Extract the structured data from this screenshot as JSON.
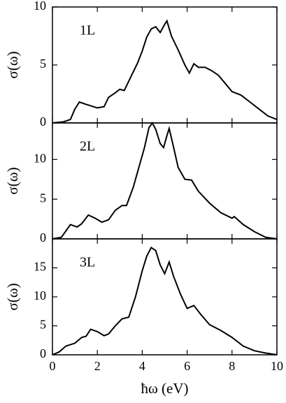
{
  "chart_data": [
    {
      "type": "line",
      "label": "1L",
      "ylabel": "σ(ω)",
      "color": "#000000",
      "xlim": [
        0,
        10
      ],
      "xticks": [
        0,
        2,
        4,
        6,
        8,
        10
      ],
      "ylim": [
        0,
        10
      ],
      "yticks": [
        0,
        5,
        10
      ],
      "x": [
        0,
        0.5,
        0.8,
        1.0,
        1.2,
        1.5,
        2.0,
        2.3,
        2.5,
        2.8,
        3.0,
        3.2,
        3.5,
        3.8,
        4.0,
        4.2,
        4.4,
        4.6,
        4.8,
        5.0,
        5.1,
        5.3,
        5.6,
        5.9,
        6.1,
        6.3,
        6.5,
        6.8,
        7.1,
        7.4,
        7.7,
        8.0,
        8.4,
        8.8,
        9.2,
        9.6,
        10
      ],
      "values": [
        0.0,
        0.1,
        0.3,
        1.2,
        1.8,
        1.6,
        1.3,
        1.4,
        2.2,
        2.6,
        2.9,
        2.8,
        4.0,
        5.2,
        6.2,
        7.4,
        8.1,
        8.3,
        7.8,
        8.5,
        8.8,
        7.5,
        6.3,
        5.0,
        4.3,
        5.1,
        4.8,
        4.8,
        4.5,
        4.1,
        3.4,
        2.7,
        2.4,
        1.8,
        1.2,
        0.6,
        0.3
      ]
    },
    {
      "type": "line",
      "label": "2L",
      "ylabel": "σ(ω)",
      "color": "#000000",
      "xlim": [
        0,
        10
      ],
      "xticks": [
        0,
        2,
        4,
        6,
        8,
        10
      ],
      "ylim": [
        0,
        14.6
      ],
      "yticks": [
        0,
        5,
        10
      ],
      "x": [
        0,
        0.4,
        0.6,
        0.8,
        1.1,
        1.3,
        1.6,
        1.9,
        2.2,
        2.5,
        2.8,
        3.1,
        3.3,
        3.6,
        3.9,
        4.1,
        4.3,
        4.45,
        4.6,
        4.8,
        4.95,
        5.1,
        5.2,
        5.4,
        5.6,
        5.9,
        6.2,
        6.5,
        7.0,
        7.5,
        8.0,
        8.1,
        8.5,
        9.0,
        9.5,
        10
      ],
      "values": [
        0,
        0.2,
        1.0,
        1.8,
        1.5,
        1.9,
        3.0,
        2.6,
        2.1,
        2.4,
        3.6,
        4.2,
        4.2,
        6.5,
        9.5,
        11.5,
        14.0,
        14.6,
        13.8,
        12.0,
        11.5,
        13.0,
        13.9,
        11.5,
        9.0,
        7.5,
        7.4,
        6.0,
        4.5,
        3.3,
        2.6,
        2.8,
        1.8,
        0.9,
        0.2,
        0
      ]
    },
    {
      "type": "line",
      "label": "3L",
      "ylabel": "σ(ω)",
      "xlabel": "ħω (eV)",
      "color": "#000000",
      "xlim": [
        0,
        10
      ],
      "xticks": [
        0,
        2,
        4,
        6,
        8,
        10
      ],
      "ylim": [
        0,
        20
      ],
      "yticks": [
        0,
        5,
        10,
        15
      ],
      "x": [
        0,
        0.3,
        0.6,
        1.0,
        1.3,
        1.5,
        1.7,
        2.0,
        2.3,
        2.5,
        2.8,
        3.1,
        3.4,
        3.7,
        4.0,
        4.2,
        4.4,
        4.6,
        4.8,
        5.0,
        5.2,
        5.4,
        5.7,
        6.0,
        6.3,
        6.6,
        7.0,
        7.5,
        8.0,
        8.5,
        9.0,
        9.5,
        10
      ],
      "values": [
        0,
        0.5,
        1.5,
        2.0,
        3.0,
        3.2,
        4.4,
        4.0,
        3.3,
        3.6,
        5.0,
        6.2,
        6.5,
        10.0,
        14.5,
        17.0,
        18.5,
        18.0,
        15.5,
        14.0,
        16.0,
        13.5,
        10.5,
        8.0,
        8.5,
        7.0,
        5.2,
        4.2,
        3.0,
        1.5,
        0.7,
        0.3,
        0
      ]
    }
  ]
}
